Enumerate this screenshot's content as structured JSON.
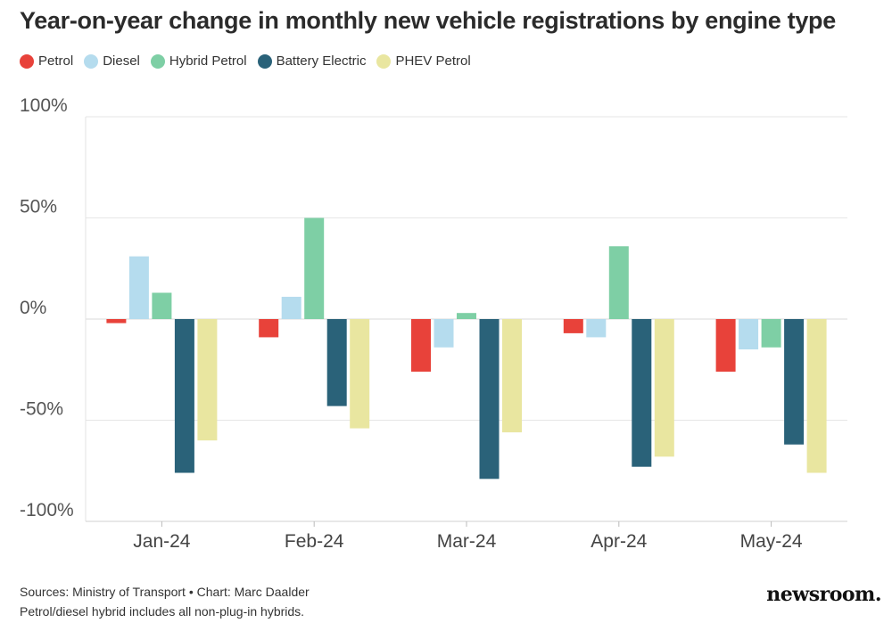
{
  "chart_data": {
    "type": "bar",
    "title": "Year-on-year change in monthly new vehicle registrations by engine type",
    "categories": [
      "Jan-24",
      "Feb-24",
      "Mar-24",
      "Apr-24",
      "May-24"
    ],
    "series": [
      {
        "name": "Petrol",
        "color": "#e8423a",
        "values": [
          -2,
          -9,
          -26,
          -7,
          -26
        ]
      },
      {
        "name": "Diesel",
        "color": "#b5dcee",
        "values": [
          31,
          11,
          -14,
          -9,
          -15
        ]
      },
      {
        "name": "Hybrid Petrol",
        "color": "#7ecfa5",
        "values": [
          13,
          50,
          3,
          36,
          -14
        ]
      },
      {
        "name": "Battery Electric",
        "color": "#2a6279",
        "values": [
          -76,
          -43,
          -79,
          -73,
          -62
        ]
      },
      {
        "name": "PHEV Petrol",
        "color": "#e9e6a0",
        "values": [
          -60,
          -54,
          -56,
          -68,
          -76
        ]
      }
    ],
    "ylim": [
      -100,
      100
    ],
    "yticks": [
      100,
      50,
      0,
      -50,
      -100
    ],
    "ytick_labels": [
      "100%",
      "50%",
      "0%",
      "-50%",
      "-100%"
    ],
    "xlabel": "",
    "ylabel": "",
    "grid": true,
    "legend": "top-left"
  },
  "footer": {
    "sources": "Sources: Ministry of Transport • Chart: Marc Daalder",
    "note": "Petrol/diesel hybrid includes all non-plug-in hybrids."
  },
  "brand": "newsroom."
}
